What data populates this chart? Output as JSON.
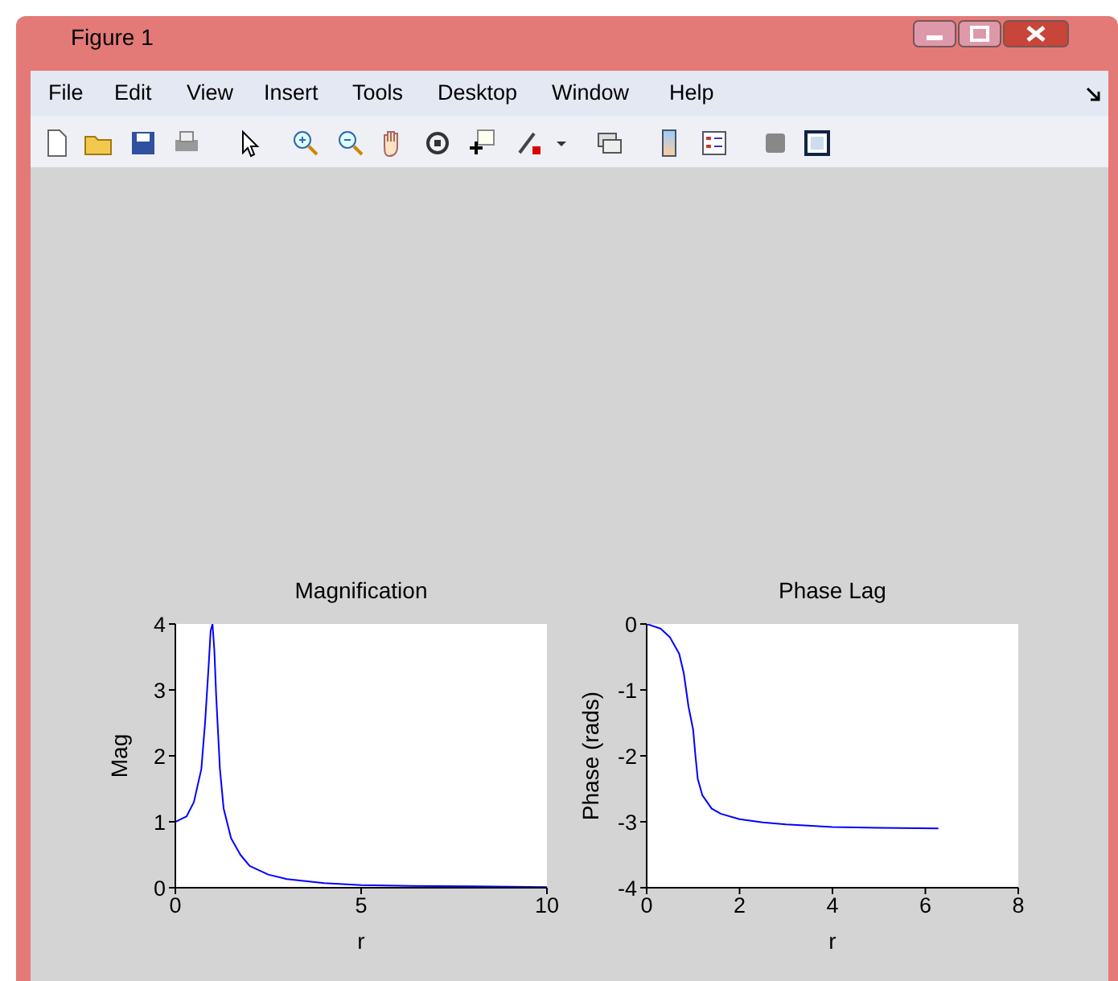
{
  "chart_data": [
    {
      "type": "other",
      "title": "Figure 1",
      "annotations": [
        "File",
        "Edit",
        "View",
        "Insert",
        "Tools",
        "Desktop",
        "Window",
        "Help"
      ]
    },
    {
      "type": "line",
      "title": "Magnification",
      "xlabel": "r",
      "ylabel": "Mag",
      "xlim": [
        0,
        10
      ],
      "xticks": [
        0,
        5,
        10
      ],
      "ylim": [
        0,
        4
      ],
      "yticks": [
        0,
        1,
        2,
        3,
        4
      ],
      "x": [
        0,
        0.3,
        0.5,
        0.7,
        0.8,
        0.9,
        0.95,
        1.0,
        1.05,
        1.1,
        1.2,
        1.3,
        1.5,
        1.75,
        2,
        2.5,
        3,
        4,
        5,
        6,
        8,
        10
      ],
      "series": [
        {
          "color": "#0000ff",
          "values": [
            1,
            1.08,
            1.3,
            1.8,
            2.5,
            3.4,
            3.9,
            4.0,
            3.6,
            2.9,
            1.8,
            1.2,
            0.75,
            0.5,
            0.33,
            0.2,
            0.13,
            0.07,
            0.04,
            0.03,
            0.02,
            0.01
          ]
        }
      ]
    },
    {
      "type": "line",
      "title": "Phase Lag",
      "xlabel": "r",
      "ylabel": "Phase (rads)",
      "xlim": [
        0,
        8
      ],
      "xticks": [
        0,
        2,
        4,
        6,
        8
      ],
      "ylim": [
        -4,
        0
      ],
      "yticks": [
        -4,
        -3,
        -2,
        -1,
        0
      ],
      "x": [
        0,
        0.3,
        0.5,
        0.7,
        0.8,
        0.9,
        1.0,
        1.05,
        1.1,
        1.2,
        1.4,
        1.6,
        2,
        2.5,
        3,
        4,
        5,
        6.28
      ],
      "series": [
        {
          "color": "#0000ff",
          "values": [
            0,
            -0.07,
            -0.2,
            -0.45,
            -0.75,
            -1.25,
            -1.6,
            -2.0,
            -2.35,
            -2.6,
            -2.8,
            -2.88,
            -2.96,
            -3.01,
            -3.04,
            -3.08,
            -3.09,
            -3.1
          ]
        }
      ]
    }
  ]
}
